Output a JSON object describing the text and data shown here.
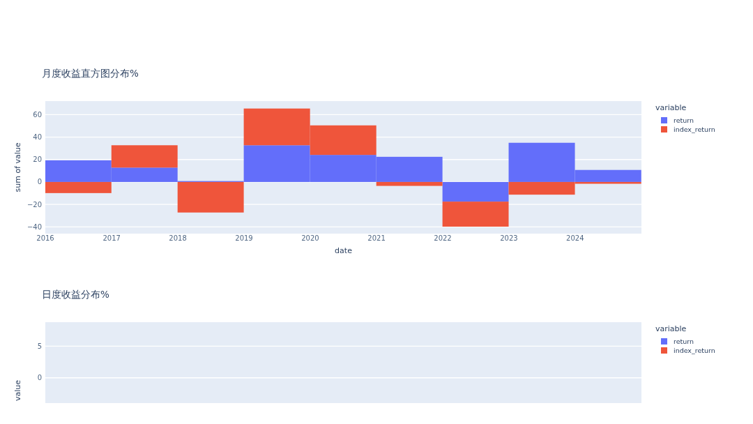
{
  "chart_data": [
    {
      "type": "bar",
      "title": "月度收益直方图分布%",
      "xlabel": "date",
      "ylabel": "sum of value",
      "legend_title": "variable",
      "x": [
        "2016-07",
        "2017-07",
        "2018-07",
        "2019-07",
        "2020-07",
        "2021-07",
        "2022-07",
        "2023-07",
        "2024-07"
      ],
      "series": [
        {
          "name": "return",
          "color": "#636efa",
          "values": [
            19.3,
            12.8,
            0.8,
            32.7,
            24.1,
            22.4,
            -17.5,
            34.9,
            10.7
          ]
        },
        {
          "name": "index_return",
          "color": "#ef553b",
          "values": [
            -9.9,
            19.9,
            -27.2,
            32.7,
            26.3,
            -3.5,
            -22.3,
            -11.3,
            -1.6
          ]
        }
      ],
      "stacked": true,
      "xlim": [
        "2016",
        "2025"
      ],
      "xticks": [
        "2016",
        "2017",
        "2018",
        "2019",
        "2020",
        "2021",
        "2022",
        "2023",
        "2024"
      ],
      "ylim": [
        -46,
        72
      ],
      "yticks": [
        {
          "value": -40,
          "label": "−40"
        },
        {
          "value": -20,
          "label": "−20"
        },
        0,
        20,
        40,
        60
      ],
      "grid": "y",
      "legend": "right"
    },
    {
      "type": "histogram",
      "title": "日度收益分布%",
      "ylabel": "value",
      "legend_title": "variable",
      "series": [
        {
          "name": "return",
          "color": "#636efa"
        },
        {
          "name": "index_return",
          "color": "#ef553b"
        }
      ],
      "ylim": [
        -4,
        8.8
      ],
      "yticks": [
        0,
        5
      ],
      "grid": "y",
      "legend": "right"
    }
  ]
}
